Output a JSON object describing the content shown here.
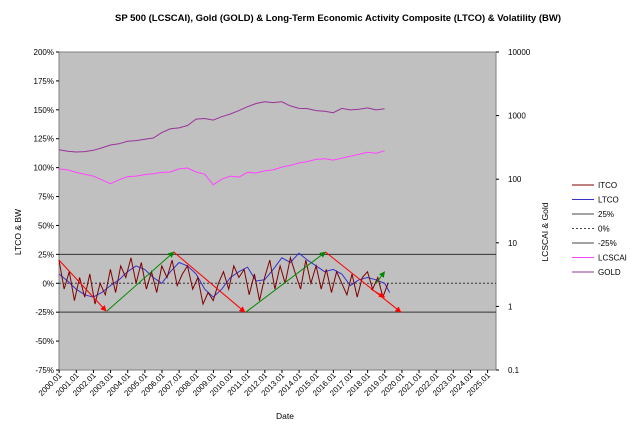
{
  "chart_data": {
    "type": "line",
    "title": "SP 500 (LCSCAI), Gold (GOLD) & Long-Term Economic Activity Composite (LTCO) & Volatility (BW)",
    "xlabel": "Date",
    "ylabel_left": "LTCO & BW",
    "ylabel_right": "LCSCAI & Gold",
    "y_left": {
      "min": -75,
      "max": 200,
      "ticks": [
        -75,
        -50,
        -25,
        0,
        25,
        50,
        75,
        100,
        125,
        150,
        175,
        200
      ],
      "tick_labels": [
        "-75%",
        "-50%",
        "-25%",
        "0%",
        "25%",
        "50%",
        "75%",
        "100%",
        "125%",
        "150%",
        "175%",
        "200%"
      ]
    },
    "y_right": {
      "scale": "log",
      "min": 0.1,
      "max": 10000,
      "ticks": [
        0.1,
        1,
        10,
        100,
        1000,
        10000
      ],
      "tick_labels": [
        "0.1",
        "1",
        "10",
        "100",
        "1000",
        "10000"
      ]
    },
    "x_ticks": [
      "2000.01",
      "2001.01",
      "2002.01",
      "2003.01",
      "2004.01",
      "2005.01",
      "2006.01",
      "2007.01",
      "2008.01",
      "2009.01",
      "2010.01",
      "2011.01",
      "2012.01",
      "2013.01",
      "2014.01",
      "2015.01",
      "2016.01",
      "2017.01",
      "2018.01",
      "2019.01",
      "2020.01",
      "2021.01",
      "2022.01",
      "2023.01",
      "2024.01",
      "2025.01"
    ],
    "x_range": [
      2000,
      2025.5
    ],
    "grid": false,
    "legend_position": "right",
    "legend": [
      {
        "label": "ITCO",
        "color": "#800000",
        "dash": ""
      },
      {
        "label": "LTCO",
        "color": "#3333cc",
        "dash": ""
      },
      {
        "label": "25%",
        "color": "#444444",
        "dash": ""
      },
      {
        "label": "0%",
        "color": "#444444",
        "dash": "2,2"
      },
      {
        "label": "-25%",
        "color": "#444444",
        "dash": ""
      },
      {
        "label": "LCSCAI",
        "color": "#ff44ff",
        "dash": ""
      },
      {
        "label": "GOLD",
        "color": "#993399",
        "dash": ""
      }
    ],
    "reference_lines_left": [
      25,
      0,
      -25
    ],
    "series": [
      {
        "name": "GOLD",
        "axis": "right",
        "color": "#993399",
        "x": [
          2000.0,
          2000.5,
          2001.0,
          2001.5,
          2002.0,
          2002.5,
          2003.0,
          2003.5,
          2004.0,
          2004.5,
          2005.0,
          2005.5,
          2006.0,
          2006.5,
          2007.0,
          2007.5,
          2008.0,
          2008.5,
          2009.0,
          2009.5,
          2010.0,
          2010.5,
          2011.0,
          2011.5,
          2012.0,
          2012.5,
          2013.0,
          2013.5,
          2014.0,
          2014.5,
          2015.0,
          2015.5,
          2016.0,
          2016.5,
          2017.0,
          2017.5,
          2018.0,
          2018.5,
          2019.0
        ],
        "values": [
          290,
          275,
          268,
          272,
          285,
          310,
          345,
          360,
          395,
          405,
          425,
          445,
          540,
          620,
          640,
          700,
          880,
          900,
          850,
          960,
          1060,
          1200,
          1380,
          1550,
          1650,
          1600,
          1650,
          1420,
          1300,
          1290,
          1200,
          1170,
          1110,
          1300,
          1230,
          1260,
          1320,
          1230,
          1280
        ]
      },
      {
        "name": "LCSCAI",
        "axis": "right",
        "color": "#ff44ff",
        "x": [
          2000.0,
          2000.5,
          2001.0,
          2001.5,
          2002.0,
          2002.5,
          2003.0,
          2003.5,
          2004.0,
          2004.5,
          2005.0,
          2005.5,
          2006.0,
          2006.5,
          2007.0,
          2007.5,
          2008.0,
          2008.5,
          2009.0,
          2009.5,
          2010.0,
          2010.5,
          2011.0,
          2011.5,
          2012.0,
          2012.5,
          2013.0,
          2013.5,
          2014.0,
          2014.5,
          2015.0,
          2015.5,
          2016.0,
          2016.5,
          2017.0,
          2017.5,
          2018.0,
          2018.5,
          2019.0
        ],
        "values": [
          145,
          140,
          128,
          120,
          112,
          98,
          85,
          98,
          110,
          112,
          118,
          122,
          128,
          130,
          145,
          150,
          130,
          120,
          82,
          100,
          112,
          108,
          128,
          125,
          135,
          140,
          155,
          165,
          180,
          190,
          205,
          210,
          200,
          215,
          230,
          245,
          265,
          255,
          280
        ]
      },
      {
        "name": "LTCO",
        "axis": "left",
        "color": "#3333cc",
        "x": [
          2000.0,
          2000.5,
          2001.0,
          2001.5,
          2002.0,
          2002.5,
          2003.0,
          2003.5,
          2004.0,
          2004.5,
          2005.0,
          2005.5,
          2006.0,
          2006.5,
          2007.0,
          2007.5,
          2008.0,
          2008.5,
          2009.0,
          2009.5,
          2010.0,
          2010.5,
          2011.0,
          2011.5,
          2012.0,
          2012.5,
          2013.0,
          2013.5,
          2014.0,
          2014.5,
          2015.0,
          2015.5,
          2016.0,
          2016.5,
          2017.0,
          2017.5,
          2018.0,
          2018.5,
          2019.0,
          2019.3
        ],
        "values": [
          8,
          2,
          -5,
          -10,
          -12,
          -8,
          -2,
          3,
          10,
          15,
          12,
          5,
          0,
          10,
          18,
          15,
          8,
          -5,
          -12,
          -5,
          5,
          10,
          14,
          2,
          3,
          12,
          22,
          18,
          26,
          20,
          15,
          10,
          12,
          8,
          -2,
          3,
          5,
          3,
          0,
          -8
        ]
      },
      {
        "name": "ITCO",
        "axis": "left",
        "color": "#800000",
        "x": [
          2000.0,
          2000.3,
          2000.6,
          2000.9,
          2001.2,
          2001.5,
          2001.8,
          2002.1,
          2002.4,
          2002.7,
          2003.0,
          2003.3,
          2003.6,
          2003.9,
          2004.2,
          2004.5,
          2004.8,
          2005.1,
          2005.4,
          2005.7,
          2006.0,
          2006.3,
          2006.6,
          2006.9,
          2007.2,
          2007.5,
          2007.8,
          2008.1,
          2008.4,
          2008.7,
          2009.0,
          2009.3,
          2009.6,
          2009.9,
          2010.2,
          2010.5,
          2010.8,
          2011.1,
          2011.4,
          2011.7,
          2012.0,
          2012.3,
          2012.6,
          2012.9,
          2013.2,
          2013.5,
          2013.8,
          2014.1,
          2014.4,
          2014.7,
          2015.0,
          2015.3,
          2015.6,
          2015.9,
          2016.2,
          2016.5,
          2016.8,
          2017.1,
          2017.4,
          2017.7,
          2018.0,
          2018.3,
          2018.6,
          2018.9,
          2019.2
        ],
        "values": [
          20,
          -5,
          10,
          -15,
          5,
          -12,
          8,
          -18,
          0,
          -10,
          12,
          -8,
          15,
          5,
          22,
          0,
          18,
          -5,
          10,
          -8,
          15,
          5,
          20,
          -2,
          8,
          15,
          -5,
          5,
          -18,
          -8,
          -15,
          0,
          10,
          -5,
          15,
          5,
          12,
          -10,
          8,
          -15,
          5,
          20,
          -5,
          15,
          0,
          22,
          8,
          -5,
          20,
          0,
          15,
          -5,
          12,
          -8,
          10,
          0,
          -10,
          8,
          -12,
          5,
          10,
          -5,
          5,
          -12,
          0
        ]
      }
    ],
    "trend_arrows": [
      {
        "color": "#ff0000",
        "from": [
          2000.0,
          20
        ],
        "to": [
          2002.75,
          -24
        ]
      },
      {
        "color": "#008800",
        "from": [
          2002.8,
          -24
        ],
        "to": [
          2006.7,
          27
        ]
      },
      {
        "color": "#ff0000",
        "from": [
          2006.7,
          27
        ],
        "to": [
          2010.85,
          -25
        ]
      },
      {
        "color": "#008800",
        "from": [
          2010.9,
          -25
        ],
        "to": [
          2015.55,
          27
        ]
      },
      {
        "color": "#ff0000",
        "from": [
          2015.55,
          27
        ],
        "to": [
          2019.95,
          -25
        ]
      },
      {
        "color": "#ff0000",
        "from": [
          2018.2,
          -5
        ],
        "to": [
          2019.0,
          -12
        ]
      },
      {
        "color": "#008800",
        "from": [
          2018.5,
          0
        ],
        "to": [
          2019.0,
          10
        ]
      }
    ]
  }
}
